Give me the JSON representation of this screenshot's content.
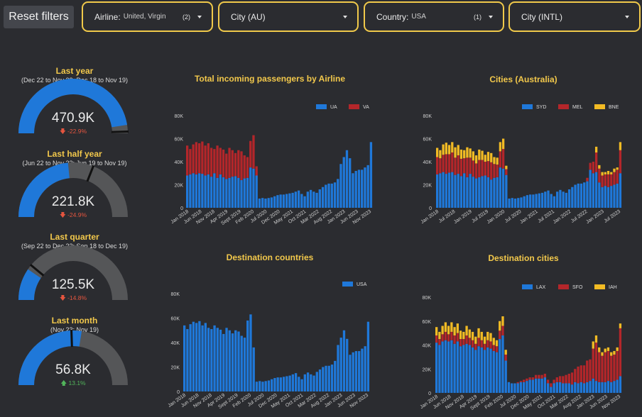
{
  "toolbar": {
    "reset_label": "Reset filters",
    "filters": [
      {
        "label": "Airline:",
        "value": "United, Virgin",
        "count": "(2)"
      },
      {
        "label": "City (AU)",
        "value": "",
        "count": ""
      },
      {
        "label": "Country:",
        "value": "USA",
        "count": "(1)"
      },
      {
        "label": "City (INTL)",
        "value": "",
        "count": ""
      }
    ]
  },
  "colors": {
    "blue": "#1f78d9",
    "red": "#b3262a",
    "yellow": "#f2bb24",
    "gauge_track": "#555658",
    "title": "#f2c84b"
  },
  "gauges": [
    {
      "title": "Last year",
      "subtitle": "(Dec 22 to Nov 23; Dec 18 to Nov 19)",
      "value": "470.9K",
      "delta": "-22.9%",
      "direction": "down",
      "fill_fraction": 0.95,
      "target_fraction": 0.99
    },
    {
      "title": "Last half year",
      "subtitle": "(Jun 22 to Nov 23; Jun 19 to Nov 19)",
      "value": "221.8K",
      "delta": "-24.9%",
      "direction": "down",
      "fill_fraction": 0.47,
      "target_fraction": 0.62
    },
    {
      "title": "Last quarter",
      "subtitle": "(Sep 22 to Dec 23; Sep 18 to Dec 19)",
      "value": "125.5K",
      "delta": "-14.8%",
      "direction": "down",
      "fill_fraction": 0.19,
      "target_fraction": 0.22
    },
    {
      "title": "Last month",
      "subtitle": "(Nov 23; Nov 19)",
      "value": "56.8K",
      "delta": "13.1%",
      "direction": "up",
      "fill_fraction": 0.55,
      "target_fraction": 0.49
    }
  ],
  "chart_data": [
    {
      "type": "bar",
      "stacked": true,
      "title": "Total incoming passengers by Airline",
      "legend_position": "top-right",
      "ylim": [
        0,
        80000
      ],
      "yticks": [
        "0",
        "20K",
        "40K",
        "60K",
        "80K"
      ],
      "xtick_labels": [
        "Jan 2018",
        "Jun 2018",
        "Nov 2018",
        "Apr 2019",
        "Sept 2019",
        "Feb 2020",
        "Jul 2020",
        "Dec 2020",
        "May 2021",
        "Oct 2021",
        "Mar 2022",
        "Aug 2022",
        "Jan 2023",
        "Jun 2023",
        "Nov 2023"
      ],
      "series": [
        {
          "name": "UA",
          "color": "#1f78d9",
          "values": [
            28000,
            29000,
            30000,
            29000,
            30000,
            29500,
            28000,
            29000,
            27000,
            30000,
            26000,
            29000,
            26500,
            25000,
            26000,
            27000,
            27500,
            26000,
            24000,
            25500,
            26000,
            35000,
            34000,
            28000,
            8000,
            8500,
            8000,
            8500,
            9000,
            10000,
            11000,
            11500,
            11500,
            12000,
            12500,
            13000,
            14000,
            15000,
            12000,
            10000,
            14000,
            15500,
            14000,
            13000,
            16000,
            18000,
            20000,
            21000,
            21000,
            22000,
            25000,
            38000,
            44000,
            50000,
            43000,
            30000,
            32000,
            33000,
            33000,
            35000,
            37000,
            57000
          ]
        },
        {
          "name": "VA",
          "color": "#b3262a",
          "values": [
            26000,
            22000,
            25000,
            28000,
            26000,
            28000,
            26000,
            27000,
            25000,
            21000,
            28000,
            23000,
            24000,
            22000,
            26000,
            23000,
            20000,
            24000,
            25000,
            20000,
            18000,
            23000,
            29000,
            8000,
            0,
            0,
            0,
            0,
            0,
            0,
            0,
            0,
            0,
            0,
            0,
            0,
            0,
            0,
            0,
            0,
            0,
            0,
            0,
            0,
            0,
            0,
            0,
            0,
            0,
            0,
            0,
            0,
            0,
            0,
            0,
            0,
            0,
            0,
            0,
            0,
            0,
            0
          ]
        }
      ]
    },
    {
      "type": "bar",
      "stacked": true,
      "title": "Cities (Australia)",
      "legend_position": "top-right",
      "ylim": [
        0,
        80000
      ],
      "yticks": [
        "0",
        "20K",
        "40K",
        "60K",
        "80K"
      ],
      "xtick_labels": [
        "Jan 2018",
        "Jul 2018",
        "Jan 2019",
        "Jul 2019",
        "Jan 2020",
        "Jul 2020",
        "Jan 2021",
        "Jul 2021",
        "Jan 2022",
        "Jul 2022",
        "Jan 2023",
        "Jul 2023"
      ],
      "series": [
        {
          "name": "SYD",
          "color": "#1f78d9",
          "values": [
            29000,
            30000,
            31000,
            29500,
            30500,
            31000,
            28500,
            29500,
            27500,
            30000,
            26500,
            29500,
            27000,
            25500,
            26500,
            27500,
            28000,
            26500,
            24500,
            26000,
            26500,
            35000,
            34000,
            28500,
            8000,
            8500,
            8000,
            8500,
            9000,
            10000,
            11000,
            11500,
            11500,
            12000,
            12500,
            13000,
            14000,
            15000,
            12000,
            10000,
            14000,
            15500,
            14000,
            13000,
            16000,
            18000,
            20000,
            21000,
            21000,
            22000,
            23000,
            33000,
            30000,
            31000,
            22000,
            18000,
            19000,
            18000,
            19000,
            20000,
            21000,
            30000
          ]
        },
        {
          "name": "MEL",
          "color": "#b3262a",
          "values": [
            15000,
            13000,
            15000,
            17000,
            16000,
            17000,
            15000,
            16000,
            15000,
            13000,
            17000,
            14000,
            14000,
            13000,
            15000,
            14000,
            12000,
            14000,
            15000,
            12000,
            11000,
            14000,
            17000,
            5000,
            0,
            0,
            0,
            0,
            0,
            0,
            0,
            0,
            0,
            0,
            0,
            0,
            0,
            0,
            0,
            0,
            0,
            0,
            0,
            0,
            0,
            0,
            0,
            0,
            0,
            0,
            3000,
            6000,
            10000,
            17000,
            12000,
            10000,
            10000,
            11000,
            10000,
            11000,
            12000,
            20000
          ]
        },
        {
          "name": "BNE",
          "color": "#f2bb24",
          "values": [
            8000,
            7000,
            9000,
            10000,
            8000,
            9000,
            9000,
            9000,
            8000,
            7000,
            9000,
            8000,
            8000,
            7000,
            9000,
            8000,
            6000,
            8000,
            8000,
            6000,
            6000,
            8000,
            9000,
            3000,
            0,
            0,
            0,
            0,
            0,
            0,
            0,
            0,
            0,
            0,
            0,
            0,
            0,
            0,
            0,
            0,
            0,
            0,
            0,
            0,
            0,
            0,
            0,
            0,
            0,
            0,
            0,
            0,
            0,
            5000,
            3000,
            3000,
            2000,
            3000,
            2000,
            3000,
            2000,
            7000
          ]
        }
      ]
    },
    {
      "type": "bar",
      "stacked": false,
      "title": "Destination countries",
      "legend_position": "top-right",
      "ylim": [
        0,
        80000
      ],
      "yticks": [
        "0",
        "20K",
        "40K",
        "60K",
        "80K"
      ],
      "xtick_labels": [
        "Jan 2018",
        "Jun 2018",
        "Nov 2018",
        "Apr 2019",
        "Sept 2019",
        "Feb 2020",
        "Jul 2020",
        "Dec 2020",
        "May 2021",
        "Oct 2021",
        "Mar 2022",
        "Aug 2022",
        "Jan 2023",
        "Jun 2023",
        "Nov 2023"
      ],
      "series": [
        {
          "name": "USA",
          "color": "#1f78d9",
          "values": [
            54000,
            51000,
            55000,
            57000,
            56000,
            57500,
            54000,
            56000,
            52000,
            51000,
            54000,
            52000,
            50500,
            47000,
            52000,
            50000,
            47500,
            50000,
            49000,
            45500,
            44000,
            58000,
            63000,
            36000,
            8000,
            8500,
            8000,
            8500,
            9000,
            10000,
            11000,
            11500,
            11500,
            12000,
            12500,
            13000,
            14000,
            15000,
            12000,
            10000,
            14000,
            15500,
            14000,
            13000,
            16000,
            18000,
            20000,
            21000,
            21000,
            22000,
            25000,
            38000,
            44000,
            50000,
            43000,
            30000,
            32000,
            33000,
            33000,
            35000,
            37000,
            57000
          ]
        }
      ]
    },
    {
      "type": "bar",
      "stacked": true,
      "title": "Destination cities",
      "legend_position": "top-right",
      "ylim": [
        0,
        80000
      ],
      "yticks": [
        "0",
        "20K",
        "40K",
        "60K",
        "80K"
      ],
      "xtick_labels": [
        "Jan 2018",
        "Jun 2018",
        "Nov 2018",
        "Apr 2019",
        "Sept 2019",
        "Feb 2020",
        "Jul 2020",
        "Dec 2020",
        "May 2021",
        "Oct 2021",
        "Mar 2022",
        "Aug 2022",
        "Jan 2023",
        "Jun 2023",
        "Nov 2023"
      ],
      "series": [
        {
          "name": "LAX",
          "color": "#1f78d9",
          "values": [
            42000,
            40000,
            43000,
            44000,
            43000,
            44000,
            41000,
            43000,
            39000,
            40000,
            41000,
            40000,
            38000,
            36000,
            39000,
            38000,
            36000,
            38000,
            37000,
            35000,
            34000,
            45000,
            48000,
            27000,
            9000,
            8000,
            8000,
            8000,
            9000,
            9000,
            10000,
            11000,
            11000,
            12000,
            12000,
            12000,
            13000,
            8000,
            5000,
            8000,
            9000,
            9000,
            8000,
            8000,
            8000,
            7000,
            9000,
            8000,
            9000,
            8000,
            9000,
            10000,
            12000,
            10000,
            9000,
            9000,
            9000,
            10000,
            9000,
            10000,
            11000,
            14000
          ]
        },
        {
          "name": "SFO",
          "color": "#b3262a",
          "values": [
            6000,
            5000,
            6000,
            7000,
            6000,
            7000,
            7000,
            7000,
            6000,
            5000,
            7000,
            6000,
            6000,
            5000,
            7000,
            6000,
            5000,
            6000,
            6000,
            5000,
            5000,
            7000,
            8000,
            5000,
            0,
            0,
            0,
            1000,
            1000,
            2000,
            2000,
            2000,
            2000,
            3000,
            3000,
            3000,
            3000,
            3000,
            3000,
            3000,
            4000,
            5000,
            6000,
            7000,
            8000,
            10000,
            11000,
            14000,
            14000,
            15000,
            18000,
            18000,
            25000,
            32000,
            25000,
            22000,
            25000,
            25000,
            22000,
            22000,
            24000,
            40000
          ]
        },
        {
          "name": "IAH",
          "color": "#f2bb24",
          "values": [
            7000,
            6000,
            7000,
            8000,
            7000,
            8000,
            7000,
            8000,
            7000,
            6000,
            8000,
            7000,
            7000,
            6000,
            8000,
            7000,
            6000,
            7000,
            7000,
            6000,
            5000,
            8000,
            8000,
            4000,
            0,
            0,
            0,
            0,
            0,
            0,
            0,
            0,
            0,
            0,
            0,
            0,
            0,
            0,
            0,
            0,
            0,
            0,
            0,
            0,
            0,
            0,
            0,
            0,
            0,
            0,
            0,
            0,
            6000,
            6000,
            4000,
            3000,
            3000,
            3000,
            3000,
            3000,
            3000,
            4000
          ]
        }
      ]
    }
  ]
}
